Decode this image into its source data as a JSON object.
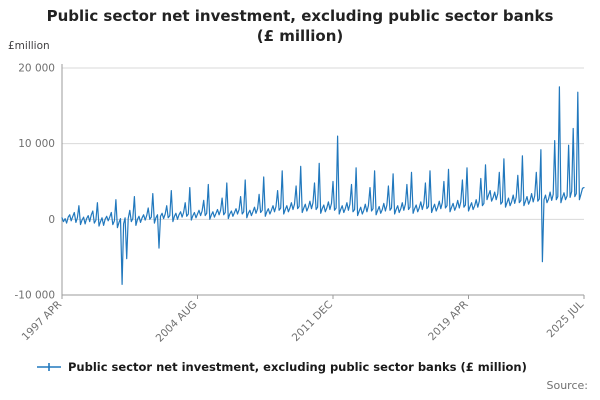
{
  "title": "Public sector net investment, excluding public sector banks (£ million)",
  "y_unit_label": "£million",
  "source_label": "Source:",
  "legend": {
    "label": "Public sector net investment, excluding public sector banks (£ million)"
  },
  "colors": {
    "line": "#2178BD",
    "grid": "#d9d9d9",
    "axis": "#9b9b9b",
    "tick_text": "#707070"
  },
  "chart_data": {
    "type": "line",
    "title": "Public sector net investment, excluding public sector banks (£ million)",
    "xlabel": "",
    "ylabel": "£million",
    "ylim": [
      -10000,
      20000
    ],
    "grid": true,
    "legend_position": "bottom",
    "frequency": "monthly",
    "start_period": "1997 APR",
    "end_period": "2025 JUL",
    "y_ticks": [
      {
        "value": 20000,
        "label": "20 000"
      },
      {
        "value": 10000,
        "label": "10 000"
      },
      {
        "value": 0,
        "label": "0"
      },
      {
        "value": -10000,
        "label": "-10 000"
      }
    ],
    "x_ticks": [
      {
        "index": 0,
        "label": "1997 APR"
      },
      {
        "index": 88,
        "label": "2004 AUG"
      },
      {
        "index": 176,
        "label": "2011 DEC"
      },
      {
        "index": 264,
        "label": "2019 APR"
      },
      {
        "index": 339,
        "label": "2025 JUL"
      }
    ],
    "values": [
      200,
      -300,
      100,
      -500,
      300,
      600,
      -200,
      400,
      900,
      -400,
      200,
      1800,
      -700,
      -100,
      300,
      -600,
      100,
      500,
      -300,
      600,
      1100,
      -500,
      -100,
      2200,
      -900,
      -300,
      200,
      -800,
      0,
      400,
      -200,
      300,
      900,
      -700,
      -200,
      2600,
      -1100,
      -400,
      100,
      -8600,
      -600,
      200,
      -5200,
      100,
      1200,
      -300,
      100,
      3000,
      -800,
      0,
      400,
      -400,
      200,
      600,
      -100,
      500,
      1500,
      0,
      300,
      3400,
      -500,
      200,
      600,
      -3800,
      400,
      800,
      100,
      700,
      1800,
      200,
      500,
      3800,
      -300,
      400,
      800,
      0,
      600,
      1000,
      300,
      900,
      2200,
      400,
      700,
      4200,
      -100,
      500,
      900,
      200,
      700,
      1200,
      500,
      1100,
      2500,
      500,
      800,
      4600,
      0,
      600,
      1000,
      300,
      800,
      1300,
      600,
      1200,
      2800,
      600,
      900,
      4800,
      100,
      700,
      1100,
      400,
      900,
      1400,
      700,
      1300,
      3000,
      700,
      1000,
      5200,
      200,
      800,
      1200,
      500,
      1000,
      1600,
      800,
      1400,
      3300,
      900,
      1200,
      5600,
      400,
      1000,
      1400,
      700,
      1200,
      1800,
      1000,
      1700,
      3800,
      1200,
      1500,
      6400,
      700,
      1300,
      1800,
      1000,
      1500,
      2200,
      1300,
      2000,
      4400,
      1400,
      1700,
      7000,
      900,
      1500,
      2000,
      1100,
      1600,
      2400,
      1400,
      2200,
      4800,
      1300,
      1600,
      7400,
      800,
      1400,
      1900,
      1000,
      1500,
      2300,
      1300,
      2100,
      5000,
      1200,
      1500,
      11000,
      700,
      1300,
      1800,
      900,
      1400,
      2200,
      1200,
      2000,
      4600,
      1000,
      1300,
      6800,
      500,
      1100,
      1600,
      700,
      1200,
      2000,
      1000,
      1800,
      4200,
      1100,
      1400,
      6400,
      600,
      1200,
      1700,
      800,
      1300,
      2100,
      1100,
      1900,
      4400,
      1200,
      1500,
      6000,
      700,
      1300,
      1800,
      900,
      1400,
      2200,
      1200,
      2000,
      4600,
      1300,
      1600,
      6200,
      800,
      1400,
      1900,
      1000,
      1500,
      2300,
      1300,
      2100,
      4800,
      1400,
      1700,
      6400,
      900,
      1500,
      2000,
      1100,
      1600,
      2400,
      1400,
      2200,
      5000,
      1500,
      1800,
      6600,
      1000,
      1600,
      2100,
      1200,
      1700,
      2500,
      1500,
      2300,
      5200,
      1600,
      1900,
      6800,
      1100,
      1700,
      2200,
      1300,
      1800,
      2600,
      1600,
      2400,
      5400,
      1800,
      2100,
      7200,
      2600,
      3200,
      3800,
      2400,
      2900,
      3600,
      2600,
      3400,
      6200,
      2000,
      2300,
      8000,
      1600,
      2200,
      2800,
      1800,
      2300,
      3200,
      2100,
      2900,
      5800,
      2200,
      2500,
      8400,
      1800,
      2400,
      3000,
      2000,
      2500,
      3400,
      2300,
      3100,
      6200,
      2400,
      2700,
      9200,
      -5600,
      2600,
      3200,
      2200,
      2700,
      3600,
      2500,
      3300,
      10400,
      2600,
      3000,
      17500,
      2200,
      2900,
      3500,
      2600,
      3100,
      9800,
      2900,
      3700,
      12000,
      3000,
      3400,
      16800,
      2600,
      3300,
      4100,
      4200
    ]
  }
}
